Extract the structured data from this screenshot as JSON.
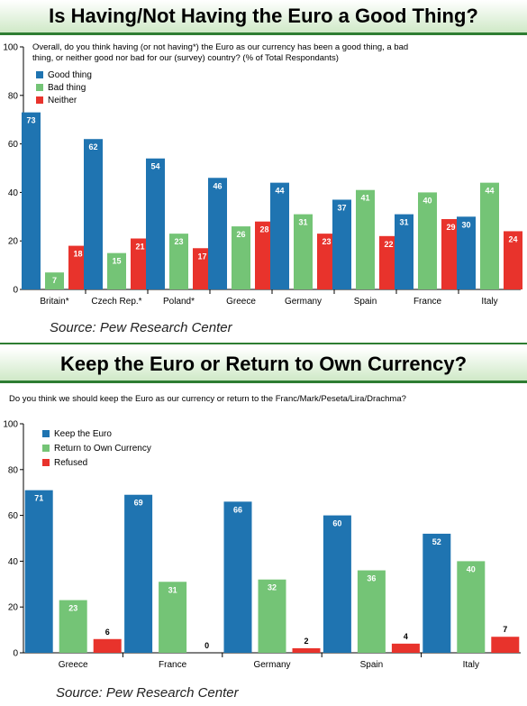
{
  "colors": {
    "good": "#1f74b1",
    "bad": "#74c476",
    "neither": "#e8332c",
    "frame": "#2e7d32"
  },
  "chart1": {
    "title": "Is Having/Not Having the Euro a Good Thing?",
    "question_line1": "Overall, do you think having (or not having*) the Euro as our currency has been a good thing, a bad",
    "question_line2": "thing, or neither good nor bad for our (survey) country? (% of Total Respondants)",
    "source": "Source: Pew Research Center"
  },
  "chart2": {
    "title": "Keep the Euro or Return to Own Currency?",
    "question": "Do you think we should keep the Euro as our currency or return to the Franc/Mark/Peseta/Lira/Drachma?",
    "source": "Source: Pew Research Center"
  },
  "chart_data": [
    {
      "type": "bar",
      "title": "Is Having/Not Having the Euro a Good Thing?",
      "categories": [
        "Britain*",
        "Czech Rep.*",
        "Poland*",
        "Greece",
        "Germany",
        "Spain",
        "France",
        "Italy"
      ],
      "series": [
        {
          "name": "Good thing",
          "color": "#1f74b1",
          "values": [
            73,
            62,
            54,
            46,
            44,
            37,
            31,
            30
          ]
        },
        {
          "name": "Bad thing",
          "color": "#74c476",
          "values": [
            7,
            15,
            23,
            26,
            31,
            41,
            40,
            44
          ]
        },
        {
          "name": "Neither",
          "color": "#e8332c",
          "values": [
            18,
            21,
            17,
            28,
            23,
            22,
            29,
            24
          ]
        }
      ],
      "ylim": [
        0,
        100
      ],
      "yticks": [
        0,
        20,
        40,
        60,
        80,
        100
      ],
      "legend": "top-left",
      "data_labels": true
    },
    {
      "type": "bar",
      "title": "Keep the Euro or Return to Own Currency?",
      "categories": [
        "Greece",
        "France",
        "Germany",
        "Spain",
        "Italy"
      ],
      "series": [
        {
          "name": "Keep the Euro",
          "color": "#1f74b1",
          "values": [
            71,
            69,
            66,
            60,
            52
          ]
        },
        {
          "name": "Return to Own Currency",
          "color": "#74c476",
          "values": [
            23,
            31,
            32,
            36,
            40
          ]
        },
        {
          "name": "Refused",
          "color": "#e8332c",
          "values": [
            6,
            0,
            2,
            4,
            7
          ]
        }
      ],
      "ylim": [
        0,
        100
      ],
      "yticks": [
        0,
        20,
        40,
        60,
        80,
        100
      ],
      "legend": "top-left",
      "data_labels": true
    }
  ]
}
